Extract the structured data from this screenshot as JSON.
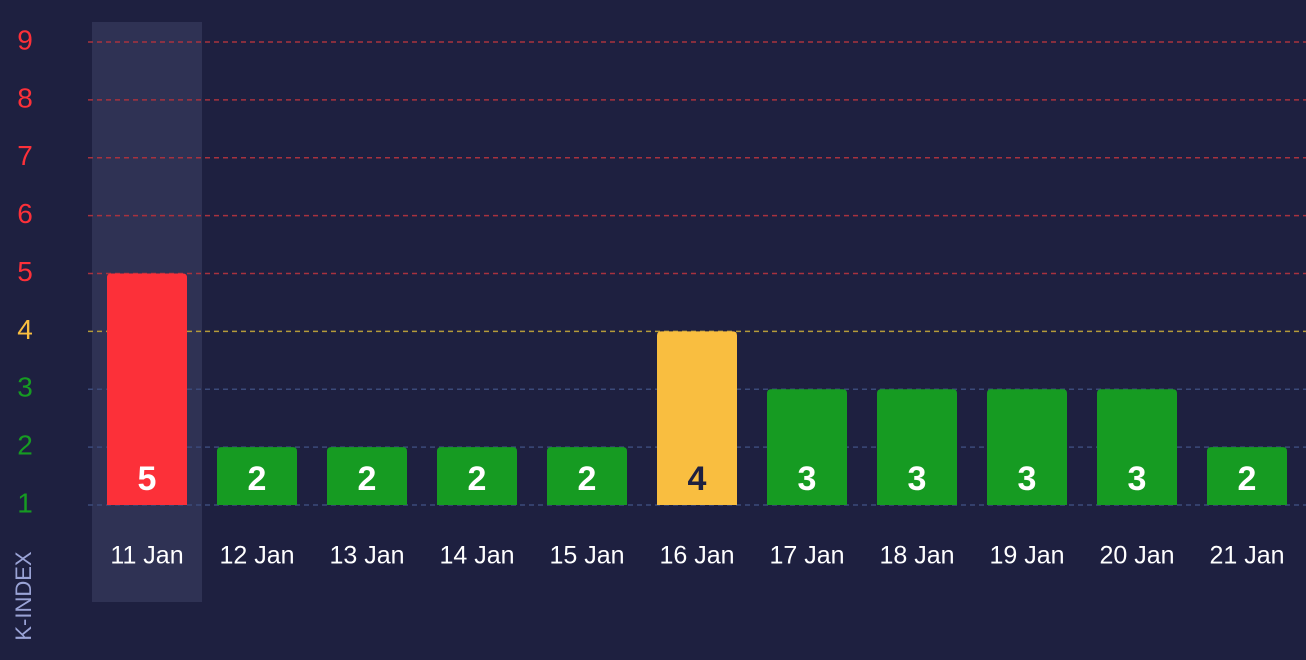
{
  "chart_data": {
    "type": "bar",
    "y_label": "K-INDEX",
    "categories": [
      "11 Jan",
      "12 Jan",
      "13 Jan",
      "14 Jan",
      "15 Jan",
      "16 Jan",
      "17 Jan",
      "18 Jan",
      "19 Jan",
      "20 Jan",
      "21 Jan"
    ],
    "values": [
      5,
      2,
      2,
      2,
      2,
      4,
      3,
      3,
      3,
      3,
      2
    ],
    "bar_colors": [
      "#fc3039",
      "#169b22",
      "#169b22",
      "#169b22",
      "#169b22",
      "#f9be40",
      "#169b22",
      "#169b22",
      "#169b22",
      "#169b22",
      "#169b22"
    ],
    "value_label_colors": [
      "#ffffff",
      "#ffffff",
      "#ffffff",
      "#ffffff",
      "#ffffff",
      "#1e2040",
      "#ffffff",
      "#ffffff",
      "#ffffff",
      "#ffffff",
      "#ffffff"
    ],
    "ylim": [
      1,
      9
    ],
    "yticks": [
      1,
      2,
      3,
      4,
      5,
      6,
      7,
      8,
      9
    ],
    "ytick_colors": [
      "#169b22",
      "#169b22",
      "#169b22",
      "#f9be40",
      "#fc3039",
      "#fc3039",
      "#fc3039",
      "#fc3039",
      "#fc3039"
    ],
    "grid_colors": [
      "#3b4a7a",
      "#3b4a7a",
      "#3b4a7a",
      "#b59a3a",
      "#a8323e",
      "#a8323e",
      "#a8323e",
      "#a8323e",
      "#a8323e"
    ],
    "grid": true
  }
}
